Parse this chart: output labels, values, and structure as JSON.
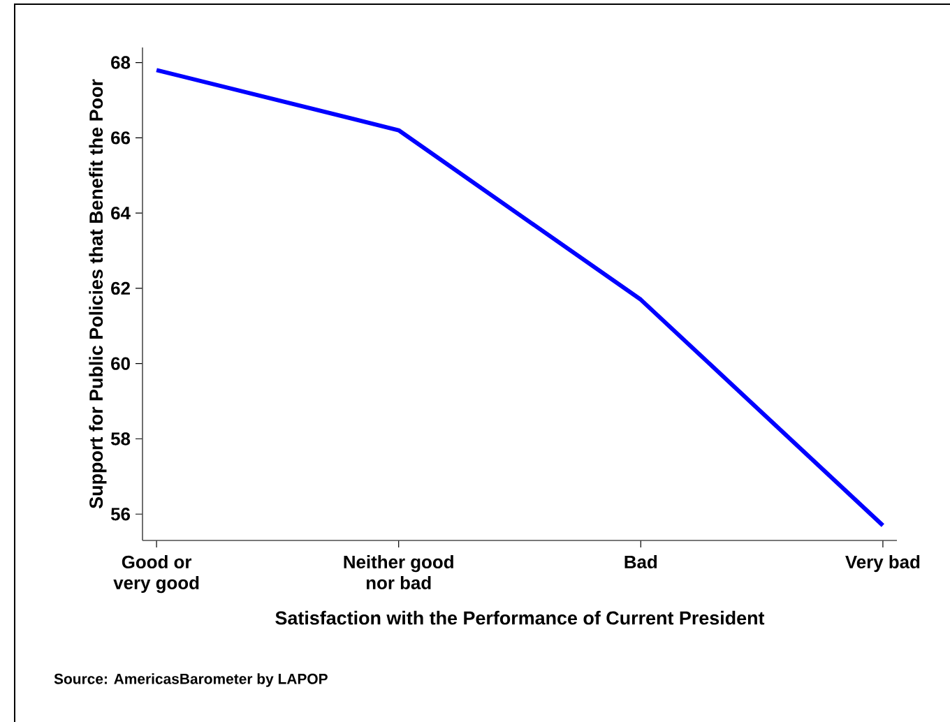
{
  "chart_data": {
    "type": "line",
    "xlabel": "Satisfaction with the Performance of Current President",
    "ylabel": "Support for Public Policies that Benefit the Poor",
    "annotations": [
      "Source: AmericasBarometer by LAPOP"
    ],
    "categories": [
      "Good or\nvery good",
      "Neither good\nnor bad",
      "Bad",
      "Very bad"
    ],
    "series": [
      {
        "color": "#0000ff",
        "values": [
          67.8,
          66.2,
          61.7,
          55.7
        ]
      }
    ],
    "ylim": [
      55.3,
      68.4
    ],
    "yticks": [
      56,
      58,
      60,
      62,
      64,
      66,
      68
    ],
    "marker": "none",
    "line_style": "solid"
  }
}
